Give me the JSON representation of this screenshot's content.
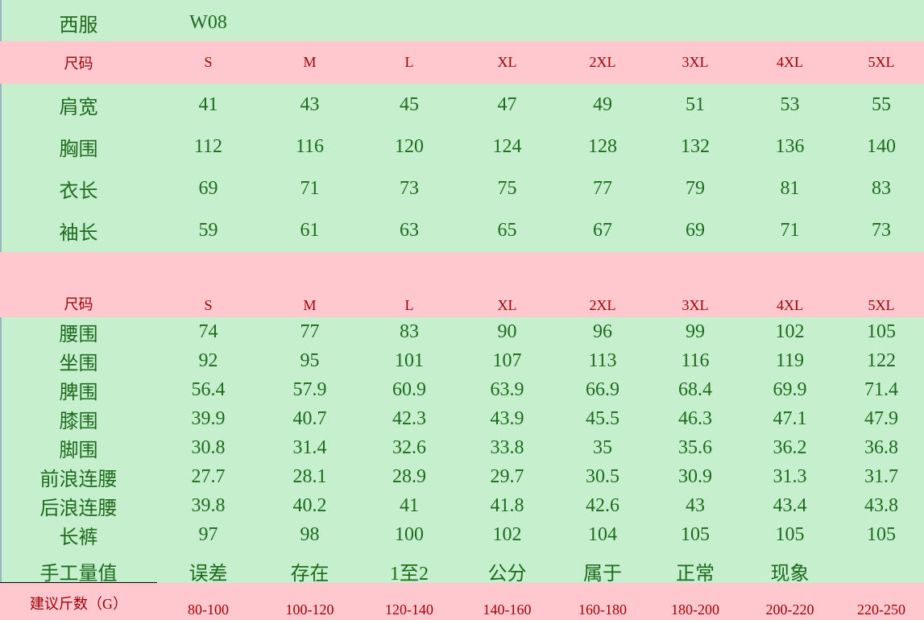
{
  "title": {
    "label": "西服",
    "code": "W08"
  },
  "colors": {
    "green_bg": "#c6efce",
    "green_text": "#1e6b1e",
    "pink_bg": "#ffc7ce",
    "pink_text": "#9c0006"
  },
  "top_table": {
    "header": [
      "尺码",
      "S",
      "M",
      "L",
      "XL",
      "2XL",
      "3XL",
      "4XL",
      "5XL"
    ],
    "rows": [
      [
        "肩宽",
        "41",
        "43",
        "45",
        "47",
        "49",
        "51",
        "53",
        "55"
      ],
      [
        "胸围",
        "112",
        "116",
        "120",
        "124",
        "128",
        "132",
        "136",
        "140"
      ],
      [
        "衣长",
        "69",
        "71",
        "73",
        "75",
        "77",
        "79",
        "81",
        "83"
      ],
      [
        "袖长",
        "59",
        "61",
        "63",
        "65",
        "67",
        "69",
        "71",
        "73"
      ]
    ]
  },
  "bottom_table": {
    "header": [
      "尺码",
      "S",
      "M",
      "L",
      "XL",
      "2XL",
      "3XL",
      "4XL",
      "5XL"
    ],
    "rows": [
      [
        "腰围",
        "74",
        "77",
        "83",
        "90",
        "96",
        "99",
        "102",
        "105"
      ],
      [
        "坐围",
        "92",
        "95",
        "101",
        "107",
        "113",
        "116",
        "119",
        "122"
      ],
      [
        "脾围",
        "56.4",
        "57.9",
        "60.9",
        "63.9",
        "66.9",
        "68.4",
        "69.9",
        "71.4"
      ],
      [
        "膝围",
        "39.9",
        "40.7",
        "42.3",
        "43.9",
        "45.5",
        "46.3",
        "47.1",
        "47.9"
      ],
      [
        "脚围",
        "30.8",
        "31.4",
        "32.6",
        "33.8",
        "35",
        "35.6",
        "36.2",
        "36.8"
      ],
      [
        "前浪连腰",
        "27.7",
        "28.1",
        "28.9",
        "29.7",
        "30.5",
        "30.9",
        "31.3",
        "31.7"
      ],
      [
        "后浪连腰",
        "39.8",
        "40.2",
        "41",
        "41.8",
        "42.6",
        "43",
        "43.4",
        "43.8"
      ],
      [
        "长裤",
        "97",
        "98",
        "100",
        "102",
        "104",
        "105",
        "105",
        "105"
      ]
    ]
  },
  "note_row": [
    "手工量值",
    "误差",
    "存在",
    "1至2",
    "公分",
    "属于",
    "正常",
    "现象",
    ""
  ],
  "weight_row": [
    "建议斤数（G）",
    "80-100",
    "100-120",
    "120-140",
    "140-160",
    "160-180",
    "180-200",
    "200-220",
    "220-250"
  ]
}
